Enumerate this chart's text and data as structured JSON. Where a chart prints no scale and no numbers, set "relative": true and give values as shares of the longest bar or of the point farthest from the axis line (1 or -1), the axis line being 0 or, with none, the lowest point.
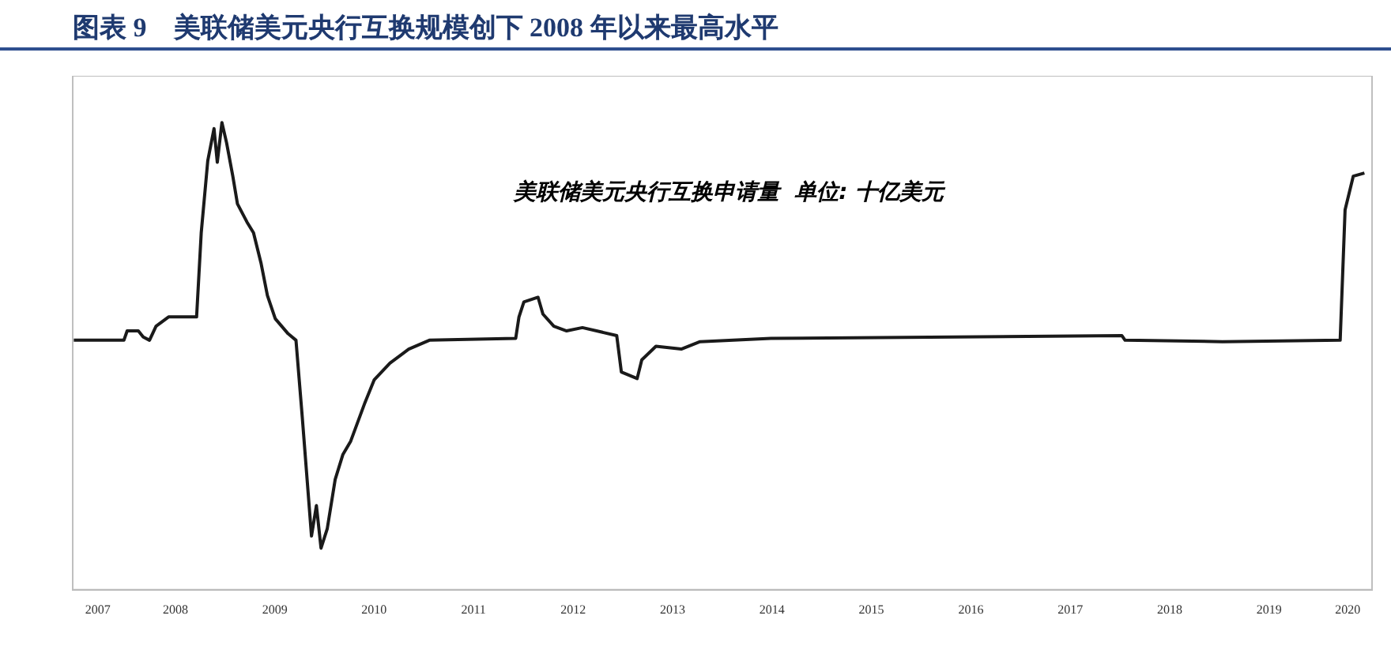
{
  "chart_data": {
    "type": "line",
    "title": "图表 9　美联储美元央行互换规模创下 2008 年以来最高水平",
    "annotations": [
      "美联储美元央行互换申请量  单位: 十亿美元"
    ],
    "relative": true,
    "grid": false,
    "legend": false,
    "marker": "none",
    "line_style": "solid",
    "xlim": [
      "2007-06-20",
      "2020-07-13"
    ],
    "xticks": [
      {
        "value": "2007-09-20",
        "label": "2007"
      },
      {
        "value": "2008-07-01",
        "label": "2008"
      },
      {
        "value": "2009-07-01",
        "label": "2009"
      },
      {
        "value": "2010-07-01",
        "label": "2010"
      },
      {
        "value": "2011-07-01",
        "label": "2011"
      },
      {
        "value": "2012-07-01",
        "label": "2012"
      },
      {
        "value": "2013-07-01",
        "label": "2013"
      },
      {
        "value": "2014-07-01",
        "label": "2014"
      },
      {
        "value": "2015-07-01",
        "label": "2015"
      },
      {
        "value": "2016-07-01",
        "label": "2016"
      },
      {
        "value": "2017-07-01",
        "label": "2017"
      },
      {
        "value": "2018-07-01",
        "label": "2018"
      },
      {
        "value": "2019-07-01",
        "label": "2019"
      },
      {
        "value": "2020-04-15",
        "label": "2020"
      }
    ],
    "series": [
      {
        "color": "#1a1a1a",
        "x": [
          "2007-06-24",
          "2007-12-25",
          "2008-01-06",
          "2008-02-16",
          "2008-03-05",
          "2008-03-28",
          "2008-04-21",
          "2008-06-06",
          "2008-08-19",
          "2008-09-17",
          "2008-10-04",
          "2008-10-28",
          "2008-11-20",
          "2008-12-02",
          "2008-12-19",
          "2009-01-05",
          "2009-01-28",
          "2009-02-14",
          "2009-03-21",
          "2009-04-14",
          "2009-05-12",
          "2009-06-04",
          "2009-07-03",
          "2009-08-19",
          "2009-09-17",
          "2009-10-10",
          "2009-11-13",
          "2009-12-01",
          "2009-12-18",
          "2010-01-10",
          "2010-02-08",
          "2010-03-08",
          "2010-04-06",
          "2010-05-28",
          "2010-07-01",
          "2010-08-28",
          "2010-11-05",
          "2011-01-20",
          "2011-12-03",
          "2011-12-15",
          "2012-01-02",
          "2012-02-23",
          "2012-03-12",
          "2012-04-21",
          "2012-06-07",
          "2012-08-04",
          "2012-12-08",
          "2012-12-25",
          "2013-02-21",
          "2013-03-10",
          "2013-05-01",
          "2013-08-02",
          "2013-10-10",
          "2014-06-27",
          "2018-01-06",
          "2018-01-18",
          "2019-01-11",
          "2020-03-18",
          "2020-04-05",
          "2020-05-05",
          "2020-06-15"
        ],
        "values": [
          0.534,
          0.534,
          0.554,
          0.554,
          0.541,
          0.534,
          0.564,
          0.584,
          0.584,
          0.584,
          0.764,
          0.918,
          0.987,
          0.915,
          1.0,
          0.957,
          0.885,
          0.826,
          0.787,
          0.764,
          0.698,
          0.63,
          0.58,
          0.548,
          0.534,
          0.37,
          0.115,
          0.18,
          0.089,
          0.131,
          0.236,
          0.289,
          0.318,
          0.4,
          0.449,
          0.485,
          0.515,
          0.534,
          0.538,
          0.584,
          0.616,
          0.626,
          0.59,
          0.564,
          0.554,
          0.561,
          0.544,
          0.466,
          0.452,
          0.492,
          0.521,
          0.515,
          0.531,
          0.538,
          0.544,
          0.534,
          0.531,
          0.534,
          0.813,
          0.885,
          0.892
        ]
      }
    ]
  }
}
